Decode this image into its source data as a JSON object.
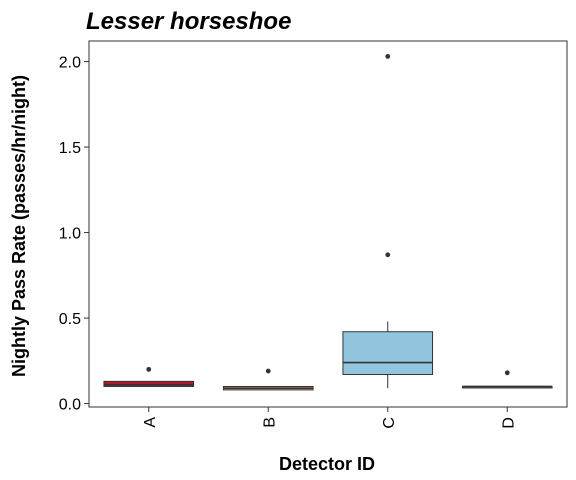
{
  "chart_data": {
    "type": "boxplot",
    "title": "Lesser horseshoe",
    "xlabel": "Detector ID",
    "ylabel": "Nightly Pass Rate (passes/hr/night)",
    "ylim": [
      -0.02,
      2.12
    ],
    "yticks": [
      0.0,
      0.5,
      1.0,
      1.5,
      2.0
    ],
    "ytick_labels": [
      "0.0",
      "0.5",
      "1.0",
      "1.5",
      "2.0"
    ],
    "categories": [
      "A",
      "B",
      "C",
      "D"
    ],
    "boxes": [
      {
        "category": "A",
        "min": 0.1,
        "q1": 0.1,
        "median": 0.11,
        "q3": 0.13,
        "max": 0.13,
        "outliers": [
          0.2
        ],
        "color": "#b2182b"
      },
      {
        "category": "B",
        "min": 0.08,
        "q1": 0.08,
        "median": 0.09,
        "q3": 0.1,
        "max": 0.1,
        "outliers": [
          0.19
        ],
        "color": "#f4a582"
      },
      {
        "category": "C",
        "min": 0.09,
        "q1": 0.17,
        "median": 0.24,
        "q3": 0.42,
        "max": 0.48,
        "outliers": [
          0.87,
          2.03
        ],
        "color": "#92c5de"
      },
      {
        "category": "D",
        "min": 0.1,
        "q1": 0.1,
        "median": 0.1,
        "q3": 0.1,
        "max": 0.1,
        "outliers": [
          0.18
        ],
        "color": "#4393c3"
      }
    ],
    "grid": false,
    "legend": "none"
  }
}
